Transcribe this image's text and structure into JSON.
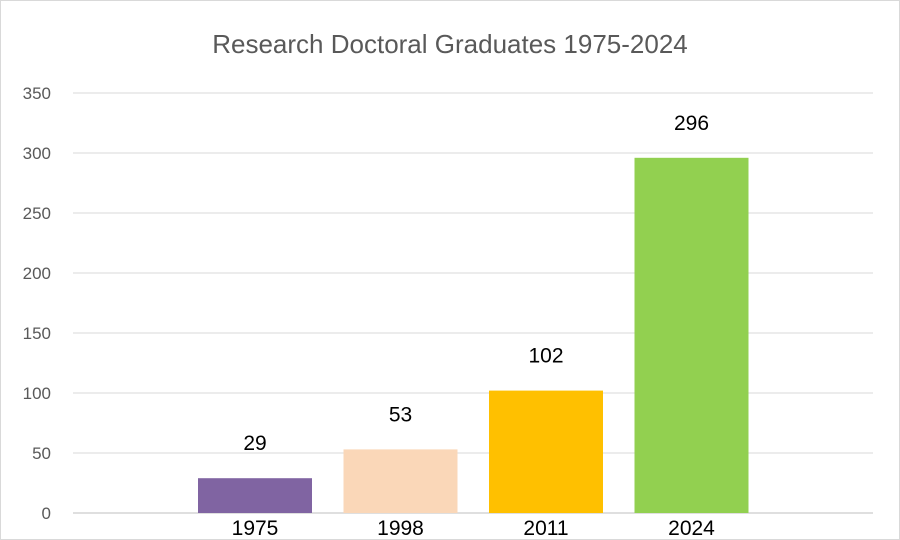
{
  "chart_data": {
    "type": "bar",
    "title": "Research Doctoral Graduates 1975-2024",
    "xlabel": "",
    "ylabel": "",
    "categories": [
      "1975",
      "1998",
      "2011",
      "2024"
    ],
    "values": [
      29,
      53,
      102,
      296
    ],
    "data_labels": [
      "29",
      "53",
      "102",
      "296"
    ],
    "bar_colors": [
      "#8064a2",
      "#fad7b8",
      "#ffc000",
      "#92d050"
    ],
    "ylim": [
      0,
      350
    ],
    "y_ticks": [
      "0",
      "50",
      "100",
      "150",
      "200",
      "250",
      "300",
      "350"
    ],
    "grid": true,
    "legend": "none"
  }
}
